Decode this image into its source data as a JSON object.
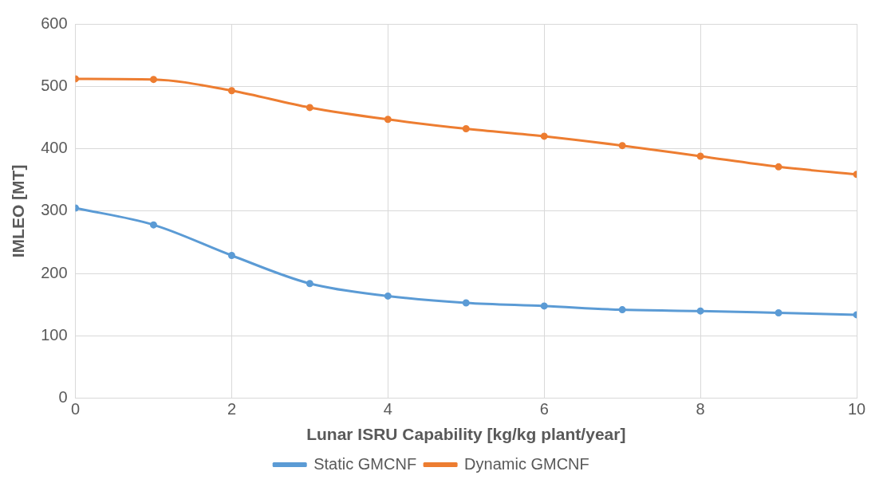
{
  "chart_data": {
    "type": "line",
    "xlabel": "Lunar ISRU Capability [kg/kg plant/year]",
    "ylabel": "IMLEO [MT]",
    "x": [
      0,
      1,
      2,
      3,
      4,
      5,
      6,
      7,
      8,
      9,
      10
    ],
    "series": [
      {
        "name": "Static GMCNF",
        "color": "#5b9bd5",
        "values": [
          305,
          278,
          229,
          184,
          164,
          153,
          148,
          142,
          140,
          137,
          134
        ]
      },
      {
        "name": "Dynamic GMCNF",
        "color": "#ed7d31",
        "values": [
          512,
          511,
          493,
          466,
          447,
          432,
          420,
          405,
          388,
          371,
          359
        ]
      }
    ],
    "xlim": [
      0,
      10
    ],
    "xticks": [
      0,
      2,
      4,
      6,
      8,
      10
    ],
    "ylim": [
      0,
      600
    ],
    "yticks": [
      0,
      100,
      200,
      300,
      400,
      500,
      600
    ],
    "grid": true,
    "legend": "bottom",
    "marker": "circle",
    "line_style": "solid"
  }
}
